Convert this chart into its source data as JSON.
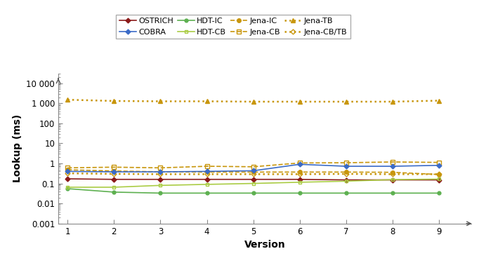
{
  "versions": [
    1,
    2,
    3,
    4,
    5,
    6,
    7,
    8,
    9
  ],
  "series": {
    "OSTRICH": {
      "values": [
        0.17,
        0.16,
        0.16,
        0.16,
        0.16,
        0.16,
        0.15,
        0.15,
        0.15
      ],
      "color": "#8B1A1A",
      "linestyle": "-",
      "marker": "D",
      "markersize": 3.5,
      "linewidth": 1.2,
      "fillstyle": "full",
      "zorder": 5
    },
    "COBRA": {
      "values": [
        0.4,
        0.38,
        0.38,
        0.4,
        0.43,
        0.9,
        0.72,
        0.72,
        0.8
      ],
      "color": "#3B6BC7",
      "linestyle": "-",
      "marker": "D",
      "markersize": 3.5,
      "linewidth": 1.2,
      "fillstyle": "full",
      "zorder": 5
    },
    "HDT-IC": {
      "values": [
        0.055,
        0.037,
        0.033,
        0.033,
        0.033,
        0.033,
        0.033,
        0.033,
        0.033
      ],
      "color": "#5DB050",
      "linestyle": "-",
      "marker": "o",
      "markersize": 3.5,
      "linewidth": 1.2,
      "fillstyle": "full",
      "zorder": 5
    },
    "HDT-CB": {
      "values": [
        0.065,
        0.065,
        0.08,
        0.09,
        0.1,
        0.115,
        0.13,
        0.155,
        0.165
      ],
      "color": "#AACC44",
      "linestyle": "-",
      "marker": "s",
      "markersize": 3.5,
      "linewidth": 1.2,
      "fillstyle": "none",
      "zorder": 5
    },
    "Jena-IC": {
      "values": [
        0.48,
        0.42,
        0.38,
        0.37,
        0.37,
        0.37,
        0.37,
        0.36,
        0.28
      ],
      "color": "#C8960C",
      "linestyle": "--",
      "marker": "o",
      "markersize": 4,
      "linewidth": 1.2,
      "fillstyle": "full",
      "zorder": 4
    },
    "Jena-CB": {
      "values": [
        0.6,
        0.65,
        0.6,
        0.72,
        0.68,
        1.05,
        1.08,
        1.18,
        1.12
      ],
      "color": "#C8960C",
      "linestyle": "--",
      "marker": "s",
      "markersize": 4,
      "linewidth": 1.2,
      "fillstyle": "none",
      "zorder": 4
    },
    "Jena-TB": {
      "values": [
        1500,
        1300,
        1250,
        1250,
        1200,
        1200,
        1200,
        1200,
        1350
      ],
      "color": "#C8960C",
      "linestyle": ":",
      "marker": "^",
      "markersize": 5,
      "linewidth": 1.8,
      "fillstyle": "full",
      "zorder": 4
    },
    "Jena-CB/TB": {
      "values": [
        0.32,
        0.3,
        0.29,
        0.29,
        0.29,
        0.29,
        0.3,
        0.29,
        0.29
      ],
      "color": "#C8960C",
      "linestyle": ":",
      "marker": "D",
      "markersize": 3.5,
      "linewidth": 1.8,
      "fillstyle": "none",
      "zorder": 4
    }
  },
  "ylim": [
    0.001,
    30000
  ],
  "xlim": [
    0.8,
    9.7
  ],
  "ylabel": "Lookup (ms)",
  "xlabel": "Version",
  "yticks": [
    0.001,
    0.01,
    0.1,
    1,
    10,
    100,
    1000,
    10000
  ],
  "ytick_labels": [
    "0.001",
    "0.01",
    "0.1",
    "1",
    "10",
    "100",
    "1 000",
    "10 000"
  ],
  "xticks": [
    1,
    2,
    3,
    4,
    5,
    6,
    7,
    8,
    9
  ],
  "legend_order": [
    "OSTRICH",
    "COBRA",
    "HDT-IC",
    "HDT-CB",
    "Jena-IC",
    "Jena-CB",
    "Jena-TB",
    "Jena-CB/TB"
  ],
  "legend_ncol": 4,
  "background_color": "#ffffff"
}
